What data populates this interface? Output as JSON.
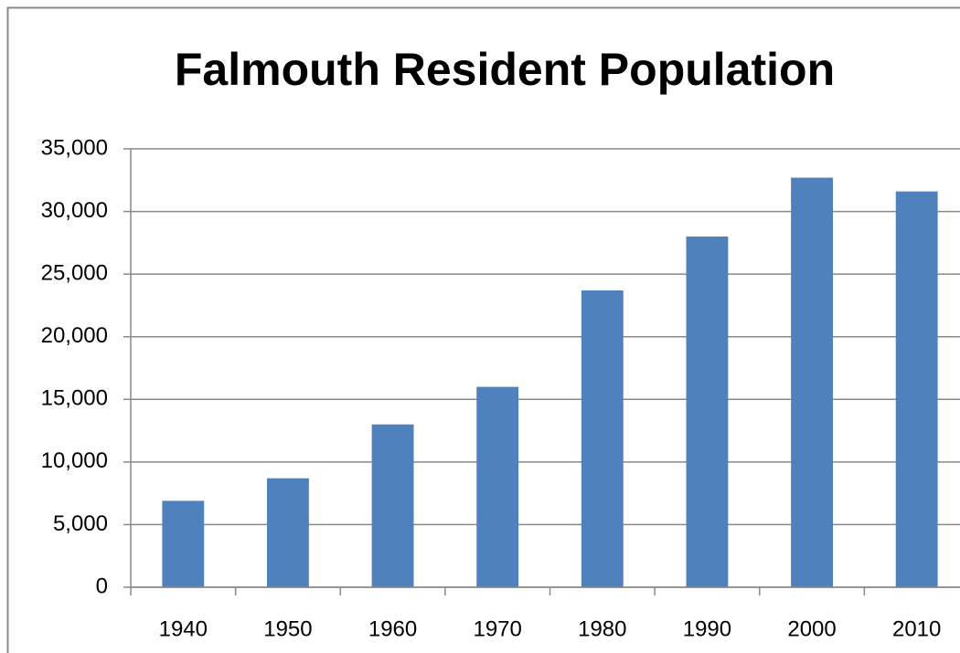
{
  "chart_data": {
    "type": "bar",
    "title": "Falmouth  Resident Population",
    "categories": [
      "1940",
      "1950",
      "1960",
      "1970",
      "1980",
      "1990",
      "2000",
      "2010"
    ],
    "values": [
      6900,
      8700,
      13000,
      16000,
      23700,
      28000,
      32700,
      31600
    ],
    "color": "#4f81bd",
    "ylim": [
      0,
      35000
    ],
    "yticks": [
      0,
      {
        "value": 5000,
        "label": "5,000"
      },
      {
        "value": 10000,
        "label": "10,000"
      },
      {
        "value": 15000,
        "label": "15,000"
      },
      {
        "value": 20000,
        "label": "20,000"
      },
      {
        "value": 25000,
        "label": "25,000"
      },
      {
        "value": 30000,
        "label": "30,000"
      },
      {
        "value": 35000,
        "label": "35,000"
      }
    ],
    "grid": true
  }
}
